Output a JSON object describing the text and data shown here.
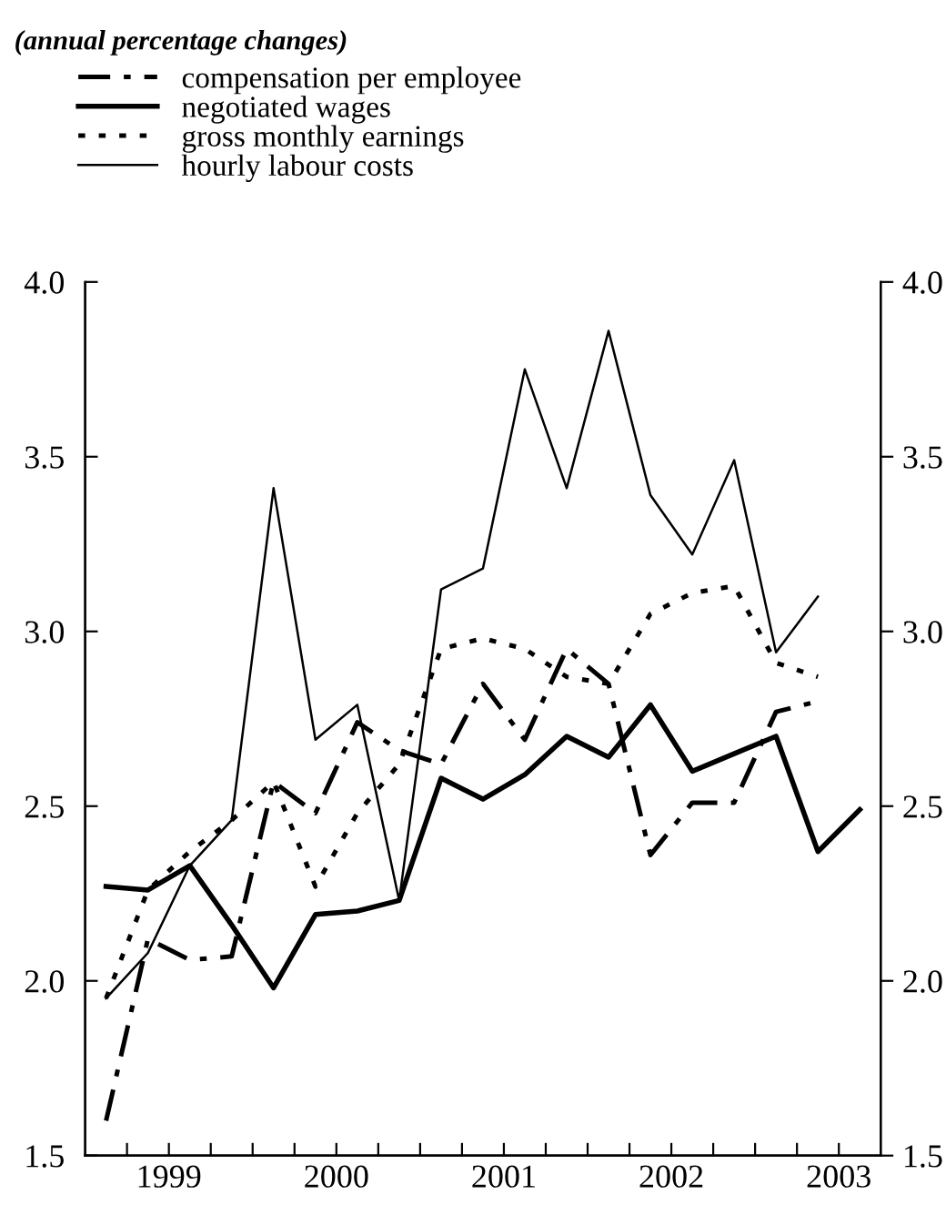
{
  "chart_data": {
    "type": "line",
    "subtitle": "(annual percentage changes)",
    "x": [
      1999.125,
      1999.375,
      1999.625,
      1999.875,
      2000.125,
      2000.375,
      2000.625,
      2000.875,
      2001.125,
      2001.375,
      2001.625,
      2001.875,
      2002.125,
      2002.375,
      2002.625,
      2002.875,
      2003.125,
      2003.375,
      2003.625
    ],
    "series": [
      {
        "name": "compensation per employee",
        "color": "#000000",
        "line_style": "dashdot",
        "values": [
          1.6,
          2.12,
          2.06,
          2.07,
          2.57,
          2.48,
          2.74,
          2.66,
          2.62,
          2.85,
          2.69,
          2.95,
          2.85,
          2.36,
          2.51,
          2.51,
          2.77,
          2.8,
          null
        ]
      },
      {
        "name": "negotiated wages",
        "color": "#000000",
        "line_style": "solid",
        "values": [
          2.27,
          2.26,
          2.33,
          2.16,
          1.98,
          2.19,
          2.2,
          2.23,
          2.58,
          2.52,
          2.59,
          2.7,
          2.64,
          2.79,
          2.6,
          2.65,
          2.7,
          2.37,
          2.49
        ]
      },
      {
        "name": "gross monthly earnings",
        "color": "#000000",
        "line_style": "dotted",
        "values": [
          1.95,
          2.26,
          2.37,
          2.46,
          2.57,
          2.27,
          2.48,
          2.62,
          2.95,
          2.98,
          2.95,
          2.87,
          2.85,
          3.05,
          3.11,
          3.13,
          2.91,
          2.87,
          null
        ]
      },
      {
        "name": "hourly labour costs",
        "color": "#000000",
        "line_style": "solid",
        "values": [
          1.95,
          2.08,
          2.33,
          2.46,
          3.41,
          2.69,
          2.79,
          2.23,
          3.12,
          3.18,
          3.75,
          3.41,
          3.86,
          3.39,
          3.22,
          3.49,
          2.94,
          3.1,
          null
        ]
      }
    ],
    "xlim": [
      1999,
      2003.75
    ],
    "xticks": [
      {
        "value": 1999.25,
        "label": null
      },
      {
        "value": 1999.5,
        "label": "1999"
      },
      {
        "value": 1999.75,
        "label": null
      },
      {
        "value": 2000,
        "label": null
      },
      {
        "value": 2000.25,
        "label": null
      },
      {
        "value": 2000.5,
        "label": "2000"
      },
      {
        "value": 2000.75,
        "label": null
      },
      {
        "value": 2001,
        "label": null
      },
      {
        "value": 2001.25,
        "label": null
      },
      {
        "value": 2001.5,
        "label": "2001"
      },
      {
        "value": 2001.75,
        "label": null
      },
      {
        "value": 2002,
        "label": null
      },
      {
        "value": 2002.25,
        "label": null
      },
      {
        "value": 2002.5,
        "label": "2002"
      },
      {
        "value": 2002.75,
        "label": null
      },
      {
        "value": 2003,
        "label": null
      },
      {
        "value": 2003.25,
        "label": null
      },
      {
        "value": 2003.5,
        "label": "2003"
      }
    ],
    "ylim": [
      1.5,
      4.0
    ],
    "yticks": [
      {
        "value": 1.5,
        "label": "1.5"
      },
      {
        "value": 2.0,
        "label": "2.0"
      },
      {
        "value": 2.5,
        "label": "2.5"
      },
      {
        "value": 3.0,
        "label": "3.0"
      },
      {
        "value": 3.5,
        "label": "3.5"
      },
      {
        "value": 4.0,
        "label": "4.0"
      }
    ],
    "y2lim": [
      1.5,
      4.0
    ],
    "y2ticks": [
      {
        "value": 1.5,
        "label": "1.5"
      },
      {
        "value": 2.0,
        "label": "2.0"
      },
      {
        "value": 2.5,
        "label": "2.5"
      },
      {
        "value": 3.0,
        "label": "3.0"
      },
      {
        "value": 3.5,
        "label": "3.5"
      },
      {
        "value": 4.0,
        "label": "4.0"
      }
    ],
    "grid": false,
    "legend": "top left",
    "marker": "none"
  }
}
